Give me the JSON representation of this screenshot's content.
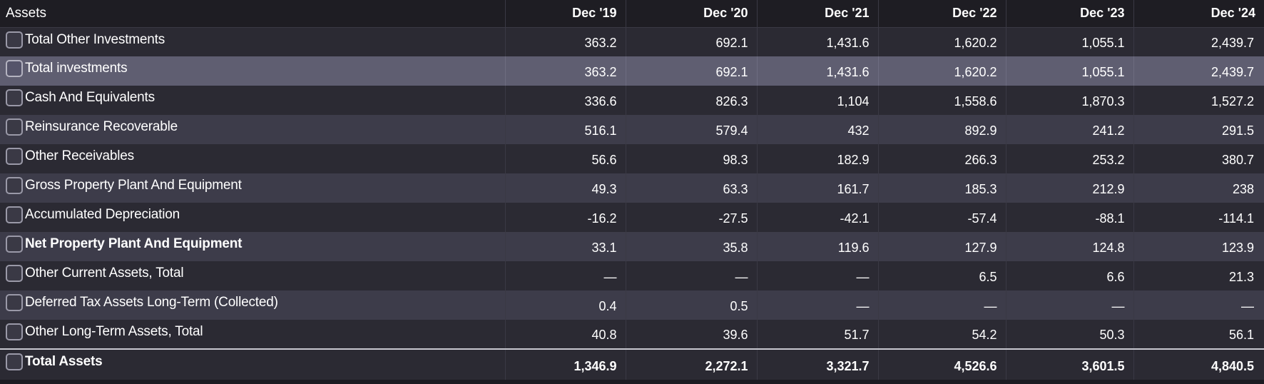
{
  "table": {
    "header_label": "Assets",
    "columns": [
      "Dec '19",
      "Dec '20",
      "Dec '21",
      "Dec '22",
      "Dec '23",
      "Dec '24"
    ],
    "rows": [
      {
        "label": "Total Other Investments",
        "values": [
          "363.2",
          "692.1",
          "1,431.6",
          "1,620.2",
          "1,055.1",
          "2,439.7"
        ]
      },
      {
        "label": "Total investments",
        "values": [
          "363.2",
          "692.1",
          "1,431.6",
          "1,620.2",
          "1,055.1",
          "2,439.7"
        ]
      },
      {
        "label": "Cash And Equivalents",
        "values": [
          "336.6",
          "826.3",
          "1,104",
          "1,558.6",
          "1,870.3",
          "1,527.2"
        ]
      },
      {
        "label": "Reinsurance Recoverable",
        "values": [
          "516.1",
          "579.4",
          "432",
          "892.9",
          "241.2",
          "291.5"
        ]
      },
      {
        "label": "Other Receivables",
        "values": [
          "56.6",
          "98.3",
          "182.9",
          "266.3",
          "253.2",
          "380.7"
        ]
      },
      {
        "label": "Gross Property Plant And Equipment",
        "values": [
          "49.3",
          "63.3",
          "161.7",
          "185.3",
          "212.9",
          "238"
        ]
      },
      {
        "label": "Accumulated Depreciation",
        "values": [
          "-16.2",
          "-27.5",
          "-42.1",
          "-57.4",
          "-88.1",
          "-114.1"
        ]
      },
      {
        "label": "Net Property Plant And Equipment",
        "values": [
          "33.1",
          "35.8",
          "119.6",
          "127.9",
          "124.8",
          "123.9"
        ]
      },
      {
        "label": "Other Current Assets, Total",
        "values": [
          "—",
          "—",
          "—",
          "6.5",
          "6.6",
          "21.3"
        ]
      },
      {
        "label": "Deferred Tax Assets Long-Term (Collected)",
        "values": [
          "0.4",
          "0.5",
          "—",
          "—",
          "—",
          "—"
        ]
      },
      {
        "label": "Other Long-Term Assets, Total",
        "values": [
          "40.8",
          "39.6",
          "51.7",
          "54.2",
          "50.3",
          "56.1"
        ]
      },
      {
        "label": "Total Assets",
        "values": [
          "1,346.9",
          "2,272.1",
          "3,321.7",
          "4,526.6",
          "3,601.5",
          "4,840.5"
        ]
      }
    ]
  }
}
